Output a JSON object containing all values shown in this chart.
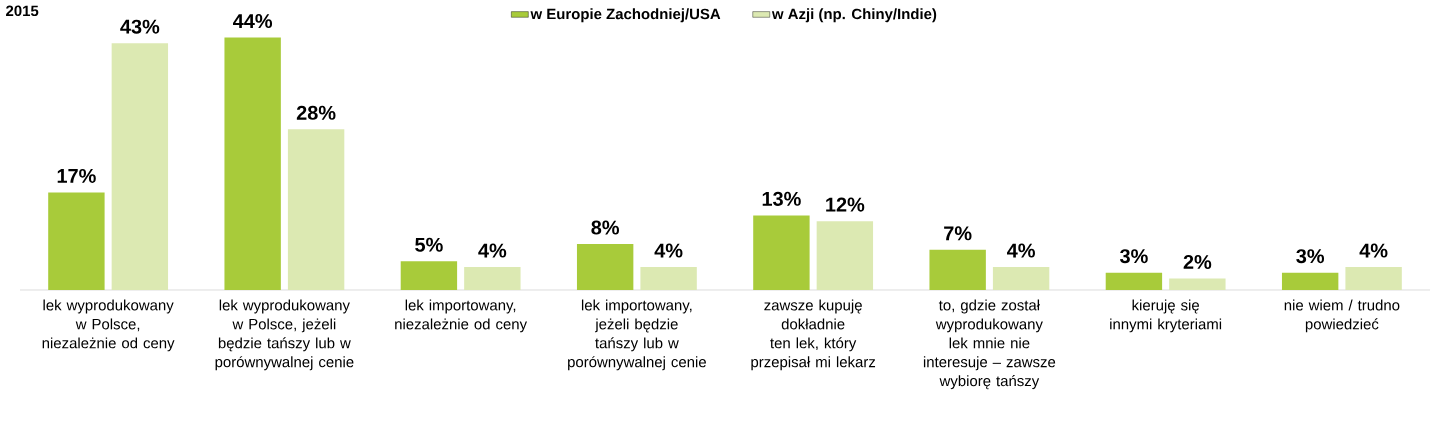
{
  "chart_data": {
    "type": "bar",
    "title": "2015",
    "categories": [
      "lek wyprodukowany w Polsce, niezależnie od ceny",
      "lek wyprodukowany w Polsce, jeżeli będzie tańszy lub w porównywalnej cenie",
      "lek importowany, niezależnie od ceny",
      "lek importowany, jeżeli będzie tańszy lub w porównywalnej cenie",
      "zawsze kupuję dokładnie ten lek, który przepisał mi lekarz",
      "to, gdzie został wyprodukowany lek mnie nie interesuje – zawsze wybiorę tańszy",
      "kieruję się innymi kryteriami",
      "nie wiem / trudno powiedzieć"
    ],
    "series": [
      {
        "name": "w Europie Zachodniej/USA",
        "color": "#a8cb3a",
        "values": [
          17,
          44,
          5,
          8,
          13,
          7,
          3,
          3
        ],
        "value_labels": [
          "17%",
          "44%",
          "5%",
          "8%",
          "13%",
          "7%",
          "3%",
          "3%"
        ]
      },
      {
        "name": "w Azji (np. Chiny/Indie)",
        "color": "#dce9b2",
        "values": [
          43,
          28,
          4,
          4,
          12,
          4,
          2,
          4
        ],
        "value_labels": [
          "43%",
          "28%",
          "4%",
          "4%",
          "12%",
          "4%",
          "2%",
          "4%"
        ]
      }
    ],
    "legend": "top"
  }
}
